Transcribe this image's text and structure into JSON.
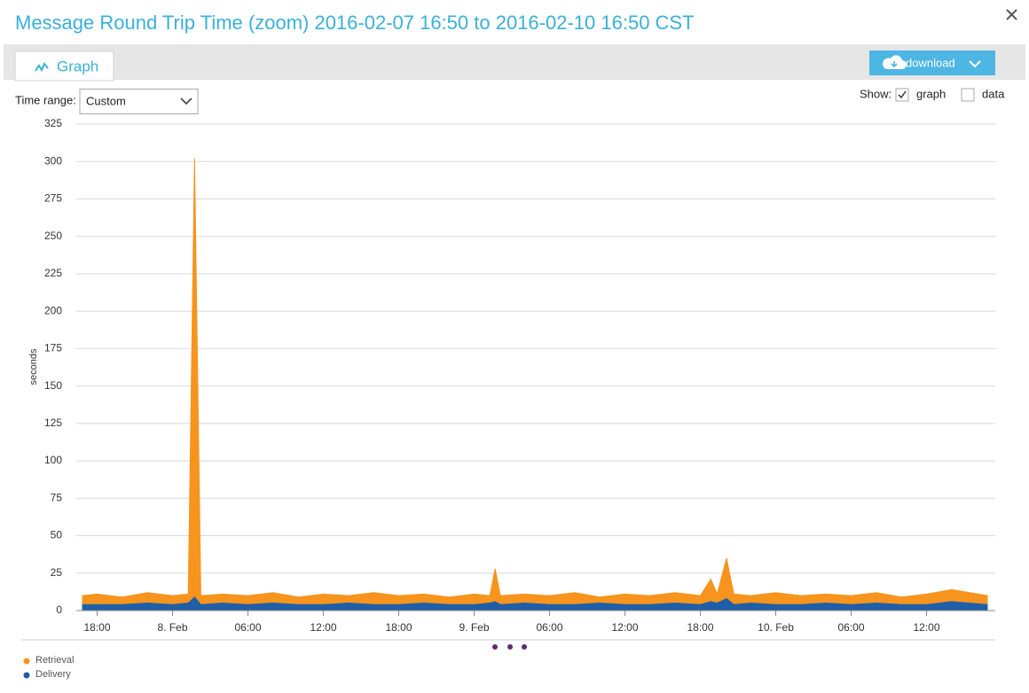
{
  "dialog": {
    "title": "Message Round Trip Time (zoom) 2016-02-07 16:50 to 2016-02-10 16:50 CST",
    "tab": "Graph",
    "download": "download",
    "time_range_label": "Time range:",
    "time_range_value": "Custom",
    "show_label": "Show:",
    "show": [
      {
        "label": "graph",
        "checked": true
      },
      {
        "label": "data",
        "checked": false
      }
    ]
  },
  "chart_data": {
    "type": "area",
    "y_label": "seconds",
    "x": [
      "2016-02-07T16:50",
      "2016-02-07T18:00",
      "2016-02-07T20:00",
      "2016-02-07T22:00",
      "2016-02-08T00:00",
      "2016-02-08T01:15",
      "2016-02-08T01:45",
      "2016-02-08T02:15",
      "2016-02-08T04:00",
      "2016-02-08T06:00",
      "2016-02-08T08:00",
      "2016-02-08T10:00",
      "2016-02-08T12:00",
      "2016-02-08T14:00",
      "2016-02-08T16:00",
      "2016-02-08T18:00",
      "2016-02-08T20:00",
      "2016-02-08T22:00",
      "2016-02-09T00:00",
      "2016-02-09T01:15",
      "2016-02-09T01:40",
      "2016-02-09T02:05",
      "2016-02-09T04:00",
      "2016-02-09T06:00",
      "2016-02-09T08:00",
      "2016-02-09T10:00",
      "2016-02-09T12:00",
      "2016-02-09T14:00",
      "2016-02-09T16:00",
      "2016-02-09T18:00",
      "2016-02-09T18:50",
      "2016-02-09T19:20",
      "2016-02-09T20:05",
      "2016-02-09T20:40",
      "2016-02-09T22:00",
      "2016-02-10T00:00",
      "2016-02-10T02:00",
      "2016-02-10T04:00",
      "2016-02-10T06:00",
      "2016-02-10T08:00",
      "2016-02-10T10:00",
      "2016-02-10T12:00",
      "2016-02-10T14:00",
      "2016-02-10T16:50"
    ],
    "series": [
      {
        "name": "Retrieval",
        "color": "#f7941d",
        "values": [
          10,
          11,
          9,
          12,
          10,
          11,
          302,
          10,
          11,
          10,
          12,
          9,
          11,
          10,
          12,
          10,
          11,
          9,
          11,
          10,
          28,
          10,
          11,
          10,
          12,
          9,
          11,
          10,
          12,
          10,
          21,
          11,
          35,
          11,
          10,
          12,
          10,
          11,
          10,
          12,
          9,
          11,
          14,
          10
        ]
      },
      {
        "name": "Delivery",
        "color": "#1f5fa8",
        "values": [
          4,
          4,
          4,
          5,
          4,
          5,
          9,
          4,
          5,
          4,
          5,
          4,
          4,
          5,
          4,
          4,
          5,
          4,
          4,
          5,
          6,
          4,
          5,
          4,
          4,
          5,
          4,
          4,
          5,
          4,
          6,
          5,
          8,
          4,
          5,
          4,
          4,
          5,
          4,
          5,
          4,
          4,
          6,
          4
        ]
      }
    ],
    "xlim": [
      "2016-02-07T16:50",
      "2016-02-10T16:50"
    ],
    "xticks": [
      {
        "value": "2016-02-07T18:00",
        "label": "18:00"
      },
      {
        "value": "2016-02-08T00:00",
        "label": "8. Feb"
      },
      {
        "value": "2016-02-08T06:00",
        "label": "06:00"
      },
      {
        "value": "2016-02-08T12:00",
        "label": "12:00"
      },
      {
        "value": "2016-02-08T18:00",
        "label": "18:00"
      },
      {
        "value": "2016-02-09T00:00",
        "label": "9. Feb"
      },
      {
        "value": "2016-02-09T06:00",
        "label": "06:00"
      },
      {
        "value": "2016-02-09T12:00",
        "label": "12:00"
      },
      {
        "value": "2016-02-09T18:00",
        "label": "18:00"
      },
      {
        "value": "2016-02-10T00:00",
        "label": "10. Feb"
      },
      {
        "value": "2016-02-10T06:00",
        "label": "06:00"
      },
      {
        "value": "2016-02-10T12:00",
        "label": "12:00"
      }
    ],
    "ylim": [
      0,
      325
    ],
    "yticks": [
      0,
      25,
      50,
      75,
      100,
      125,
      150,
      175,
      200,
      225,
      250,
      275,
      300,
      325
    ],
    "grid": true
  }
}
